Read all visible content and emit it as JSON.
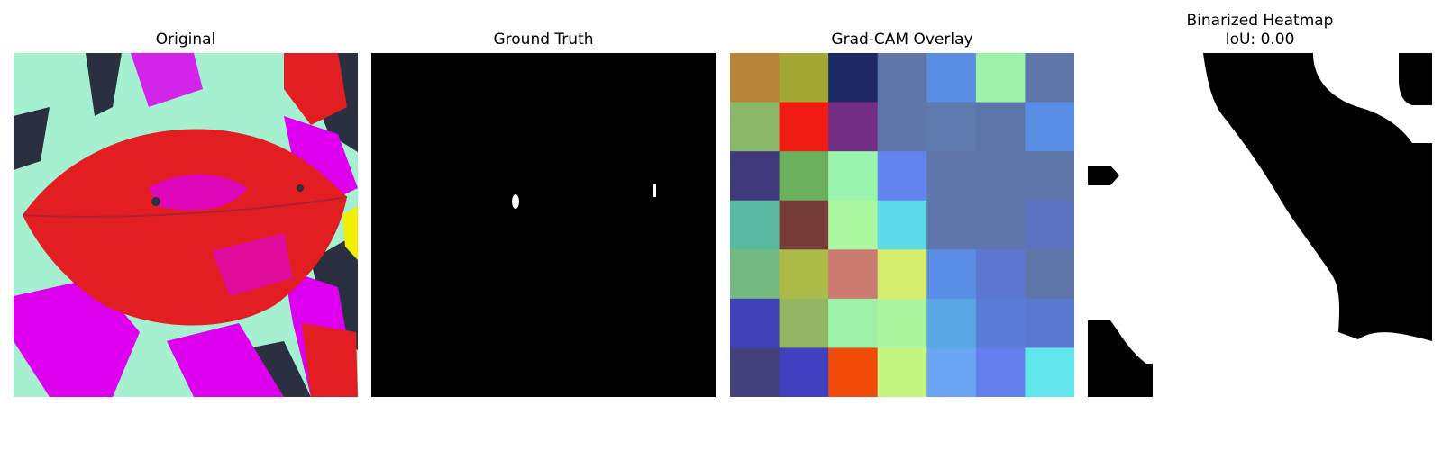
{
  "panels": [
    {
      "title": "Original"
    },
    {
      "title": "Ground Truth"
    },
    {
      "title": "Grad-CAM Overlay"
    },
    {
      "title_line1": "Binarized Heatmap",
      "title_line2": "IoU: 0.00"
    }
  ],
  "gradcam_grid": [
    [
      "#B8843A",
      "#A2A832",
      "#1E2864",
      "#5E76AA",
      "#5A8EE2",
      "#9EF2A8",
      "#5E76AA"
    ],
    [
      "#8AB86A",
      "#F01C12",
      "#722E84",
      "#5E76AA",
      "#5E7AAE",
      "#5C76AA",
      "#588EE4"
    ],
    [
      "#403A7C",
      "#6CB05E",
      "#9AF4AE",
      "#6284EE",
      "#5E76AA",
      "#5C76AA",
      "#5E76AA"
    ],
    [
      "#58BAA0",
      "#763C38",
      "#ACF8A0",
      "#5CDAE8",
      "#5E76AA",
      "#5E76AA",
      "#5A72C0"
    ],
    [
      "#74BA80",
      "#ACBA48",
      "#CA7A6E",
      "#D6EE6E",
      "#5A8EE4",
      "#5C76D2",
      "#5E76AA"
    ],
    [
      "#4042B8",
      "#92B664",
      "#9EF2A8",
      "#ACF6A0",
      "#58A6E4",
      "#5A7CD6",
      "#5A78D0"
    ],
    [
      "#44407E",
      "#4040C0",
      "#F04A08",
      "#C6F682",
      "#6AA6F4",
      "#6480EE",
      "#62E6EE"
    ]
  ],
  "colors": {
    "leaf_red": "#E21E22",
    "leaf_magenta": "#DD00EE",
    "leaf_mint": "#A4F0D0",
    "dark_bg": "#2A3040",
    "yellow": "#F0F000",
    "mask_black": "#000000",
    "mask_white": "#FFFFFF"
  }
}
